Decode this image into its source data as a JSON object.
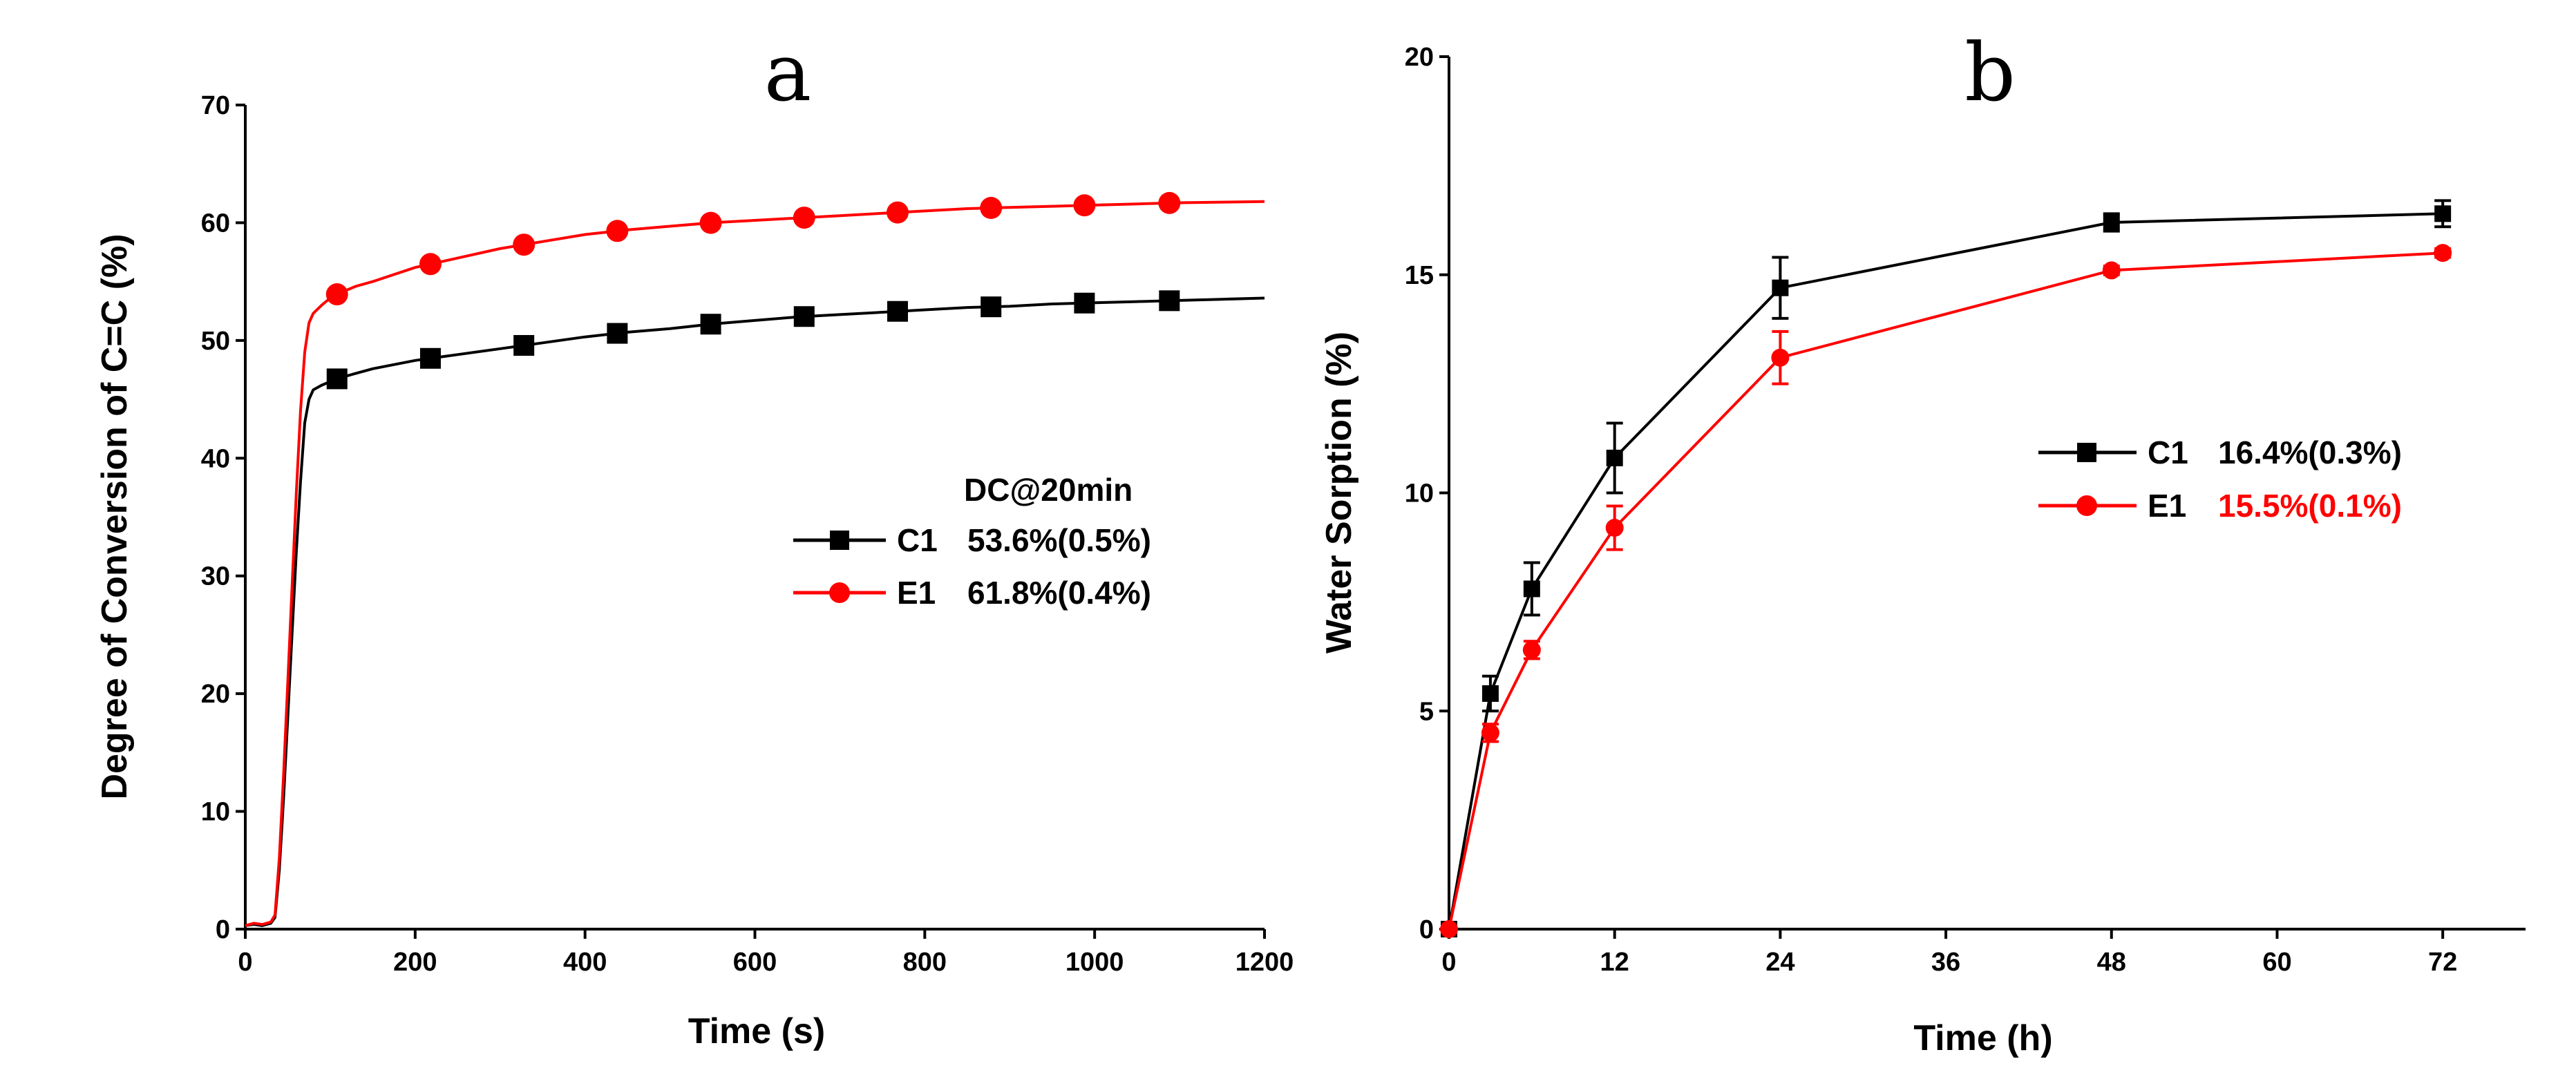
{
  "colors": {
    "C1": "#000000",
    "E1": "#ff0000"
  },
  "chart_data": [
    {
      "panel": "a",
      "type": "line",
      "xlabel": "Time (s)",
      "ylabel": "Degree of Conversion of C=C (%)",
      "xlim": [
        0,
        1200
      ],
      "ylim": [
        0,
        70
      ],
      "xticks": [
        0,
        200,
        400,
        600,
        800,
        1000,
        1200
      ],
      "yticks": [
        0,
        10,
        20,
        30,
        40,
        50,
        60,
        70
      ],
      "legend_title": "DC@20min",
      "legend_position": "center-right",
      "series": [
        {
          "name": "C1",
          "value_label": "53.6%(0.5%)",
          "marker": "square",
          "x": [
            0,
            10,
            20,
            30,
            35,
            40,
            45,
            50,
            55,
            60,
            65,
            70,
            75,
            80,
            90,
            100,
            110,
            130,
            150,
            200,
            250,
            300,
            350,
            400,
            450,
            500,
            550,
            600,
            650,
            700,
            750,
            800,
            850,
            900,
            950,
            1000,
            1050,
            1100,
            1150,
            1200
          ],
          "y": [
            0.3,
            0.4,
            0.3,
            0.5,
            1.0,
            5.0,
            11.0,
            18.0,
            25.0,
            32.0,
            38.0,
            43.0,
            45.0,
            45.8,
            46.2,
            46.5,
            46.8,
            47.2,
            47.6,
            48.3,
            48.8,
            49.3,
            49.8,
            50.3,
            50.7,
            51.0,
            51.4,
            51.7,
            52.0,
            52.2,
            52.4,
            52.6,
            52.8,
            52.9,
            53.1,
            53.2,
            53.3,
            53.4,
            53.5,
            53.6
          ],
          "marker_x": [
            108,
            218,
            328,
            438,
            548,
            658,
            768,
            878,
            988,
            1088
          ]
        },
        {
          "name": "E1",
          "value_label": "61.8%(0.4%)",
          "marker": "circle",
          "x": [
            0,
            10,
            20,
            30,
            35,
            40,
            45,
            50,
            55,
            60,
            65,
            70,
            75,
            80,
            90,
            100,
            110,
            130,
            150,
            200,
            250,
            300,
            350,
            400,
            450,
            500,
            550,
            600,
            650,
            700,
            750,
            800,
            850,
            900,
            950,
            1000,
            1050,
            1100,
            1150,
            1200
          ],
          "y": [
            0.3,
            0.5,
            0.4,
            0.6,
            1.2,
            6.0,
            13.0,
            21.0,
            29.0,
            37.0,
            44.0,
            49.0,
            51.5,
            52.3,
            53.0,
            53.6,
            54.0,
            54.6,
            55.0,
            56.2,
            57.0,
            57.8,
            58.4,
            59.0,
            59.4,
            59.7,
            60.0,
            60.2,
            60.4,
            60.6,
            60.8,
            61.0,
            61.2,
            61.3,
            61.4,
            61.5,
            61.6,
            61.7,
            61.75,
            61.8
          ],
          "marker_x": [
            108,
            218,
            328,
            438,
            548,
            658,
            768,
            878,
            988,
            1088
          ]
        }
      ]
    },
    {
      "panel": "b",
      "type": "line",
      "xlabel": "Time (h)",
      "ylabel": "Water Sorption (%)",
      "xlim": [
        0,
        78
      ],
      "ylim": [
        0,
        20
      ],
      "xticks": [
        0,
        12,
        24,
        36,
        48,
        60,
        72
      ],
      "yticks": [
        0,
        5,
        10,
        15,
        20
      ],
      "legend_position": "center-right",
      "series": [
        {
          "name": "C1",
          "value_label": "16.4%(0.3%)",
          "marker": "square",
          "x": [
            0,
            3,
            6,
            12,
            24,
            48,
            72
          ],
          "y": [
            0,
            5.4,
            7.8,
            10.8,
            14.7,
            16.2,
            16.4
          ],
          "err": [
            0,
            0.4,
            0.6,
            0.8,
            0.7,
            0.2,
            0.3
          ]
        },
        {
          "name": "E1",
          "value_label": "15.5%(0.1%)",
          "marker": "circle",
          "x": [
            0,
            3,
            6,
            12,
            24,
            48,
            72
          ],
          "y": [
            0,
            4.5,
            6.4,
            9.2,
            13.1,
            15.1,
            15.5
          ],
          "err": [
            0,
            0.2,
            0.2,
            0.5,
            0.6,
            0.1,
            0.1
          ]
        }
      ]
    }
  ]
}
